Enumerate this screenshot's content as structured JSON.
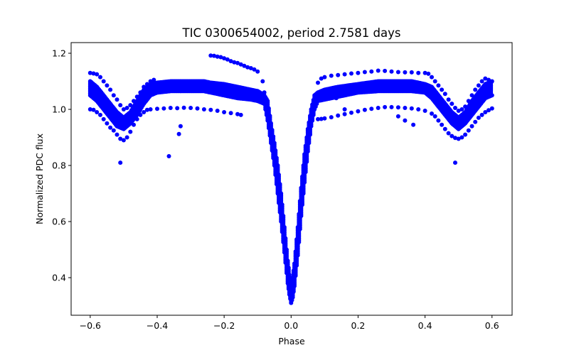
{
  "chart_data": {
    "type": "scatter",
    "title": "TIC 0300654002, period 2.7581 days",
    "xlabel": "Phase",
    "ylabel": "Normalized PDC flux",
    "xlim": [
      -0.657,
      0.66
    ],
    "ylim": [
      0.266,
      1.238
    ],
    "xticks": [
      -0.6,
      -0.4,
      -0.2,
      0.0,
      0.2,
      0.4,
      0.6
    ],
    "xtick_labels": [
      "−0.6",
      "−0.4",
      "−0.2",
      "0.0",
      "0.2",
      "0.4",
      "0.6"
    ],
    "yticks": [
      0.4,
      0.6,
      0.8,
      1.0,
      1.2
    ],
    "ytick_labels": [
      "0.4",
      "0.6",
      "0.8",
      "1.0",
      "1.2"
    ],
    "grid": false,
    "marker_color": "#0000ff",
    "main_band_envelope": [
      [
        -0.6,
        1.05,
        1.1
      ],
      [
        -0.58,
        1.03,
        1.08
      ],
      [
        -0.56,
        1.0,
        1.05
      ],
      [
        -0.54,
        0.97,
        1.02
      ],
      [
        -0.52,
        0.94,
        0.99
      ],
      [
        -0.5,
        0.93,
        0.97
      ],
      [
        -0.48,
        0.95,
        0.99
      ],
      [
        -0.46,
        0.98,
        1.03
      ],
      [
        -0.44,
        1.02,
        1.07
      ],
      [
        -0.42,
        1.05,
        1.09
      ],
      [
        -0.4,
        1.06,
        1.095
      ],
      [
        -0.36,
        1.065,
        1.1
      ],
      [
        -0.3,
        1.065,
        1.1
      ],
      [
        -0.26,
        1.065,
        1.1
      ],
      [
        -0.24,
        1.06,
        1.095
      ],
      [
        -0.2,
        1.05,
        1.09
      ],
      [
        -0.16,
        1.04,
        1.08
      ],
      [
        -0.12,
        1.035,
        1.07
      ],
      [
        -0.1,
        1.03,
        1.065
      ],
      [
        -0.08,
        1.02,
        1.05
      ],
      [
        -0.07,
        0.96,
        1.03
      ],
      [
        -0.06,
        0.88,
        0.95
      ],
      [
        -0.05,
        0.8,
        0.88
      ],
      [
        -0.04,
        0.7,
        0.8
      ],
      [
        -0.03,
        0.6,
        0.7
      ],
      [
        -0.02,
        0.49,
        0.58
      ],
      [
        -0.01,
        0.38,
        0.46
      ],
      [
        -0.005,
        0.34,
        0.41
      ],
      [
        0.0,
        0.31,
        0.37
      ],
      [
        0.005,
        0.33,
        0.4
      ],
      [
        0.01,
        0.37,
        0.45
      ],
      [
        0.02,
        0.48,
        0.58
      ],
      [
        0.03,
        0.62,
        0.72
      ],
      [
        0.04,
        0.74,
        0.84
      ],
      [
        0.05,
        0.85,
        0.93
      ],
      [
        0.06,
        0.94,
        1.0
      ],
      [
        0.07,
        1.0,
        1.05
      ],
      [
        0.08,
        1.03,
        1.06
      ],
      [
        0.1,
        1.035,
        1.07
      ],
      [
        0.14,
        1.045,
        1.08
      ],
      [
        0.2,
        1.06,
        1.09
      ],
      [
        0.26,
        1.065,
        1.1
      ],
      [
        0.36,
        1.065,
        1.1
      ],
      [
        0.4,
        1.06,
        1.09
      ],
      [
        0.42,
        1.04,
        1.08
      ],
      [
        0.44,
        1.01,
        1.05
      ],
      [
        0.46,
        0.98,
        1.02
      ],
      [
        0.48,
        0.95,
        0.99
      ],
      [
        0.5,
        0.93,
        0.97
      ],
      [
        0.52,
        0.95,
        0.99
      ],
      [
        0.54,
        0.98,
        1.03
      ],
      [
        0.56,
        1.01,
        1.06
      ],
      [
        0.58,
        1.04,
        1.09
      ],
      [
        0.6,
        1.05,
        1.1
      ]
    ],
    "upper_track": [
      [
        -0.6,
        1.13
      ],
      [
        -0.59,
        1.128
      ],
      [
        -0.58,
        1.125
      ],
      [
        -0.57,
        1.115
      ],
      [
        -0.56,
        1.1
      ],
      [
        -0.55,
        1.085
      ],
      [
        -0.54,
        1.07
      ],
      [
        -0.53,
        1.05
      ],
      [
        -0.52,
        1.035
      ],
      [
        -0.51,
        1.015
      ],
      [
        -0.5,
        1.0
      ],
      [
        -0.49,
        1.005
      ],
      [
        -0.48,
        1.015
      ],
      [
        -0.47,
        1.03
      ],
      [
        -0.46,
        1.045
      ],
      [
        -0.45,
        1.06
      ],
      [
        -0.44,
        1.08
      ],
      [
        -0.43,
        1.09
      ],
      [
        -0.42,
        1.1
      ],
      [
        -0.41,
        1.105
      ],
      [
        -0.24,
        1.192
      ],
      [
        -0.23,
        1.191
      ],
      [
        -0.22,
        1.188
      ],
      [
        -0.21,
        1.186
      ],
      [
        -0.2,
        1.182
      ],
      [
        -0.19,
        1.178
      ],
      [
        -0.18,
        1.172
      ],
      [
        -0.17,
        1.168
      ],
      [
        -0.16,
        1.165
      ],
      [
        -0.15,
        1.16
      ],
      [
        -0.14,
        1.155
      ],
      [
        -0.13,
        1.15
      ],
      [
        -0.12,
        1.147
      ],
      [
        -0.11,
        1.142
      ],
      [
        -0.1,
        1.135
      ],
      [
        -0.085,
        1.1
      ],
      [
        -0.08,
        1.06
      ],
      [
        0.08,
        1.095
      ],
      [
        0.09,
        1.11
      ],
      [
        0.1,
        1.115
      ],
      [
        0.12,
        1.12
      ],
      [
        0.14,
        1.122
      ],
      [
        0.16,
        1.125
      ],
      [
        0.18,
        1.128
      ],
      [
        0.2,
        1.13
      ],
      [
        0.22,
        1.133
      ],
      [
        0.24,
        1.135
      ],
      [
        0.26,
        1.138
      ],
      [
        0.28,
        1.137
      ],
      [
        0.3,
        1.135
      ],
      [
        0.32,
        1.133
      ],
      [
        0.34,
        1.132
      ],
      [
        0.36,
        1.132
      ],
      [
        0.38,
        1.13
      ],
      [
        0.4,
        1.13
      ],
      [
        0.41,
        1.127
      ],
      [
        0.42,
        1.115
      ],
      [
        0.43,
        1.1
      ],
      [
        0.44,
        1.085
      ],
      [
        0.45,
        1.07
      ],
      [
        0.46,
        1.055
      ],
      [
        0.47,
        1.035
      ],
      [
        0.48,
        1.02
      ],
      [
        0.49,
        1.005
      ],
      [
        0.5,
        0.995
      ],
      [
        0.51,
        1.0
      ],
      [
        0.52,
        1.01
      ],
      [
        0.53,
        1.03
      ],
      [
        0.54,
        1.05
      ],
      [
        0.55,
        1.07
      ],
      [
        0.56,
        1.085
      ],
      [
        0.57,
        1.1
      ],
      [
        0.58,
        1.11
      ],
      [
        0.59,
        1.105
      ]
    ],
    "lower_track": [
      [
        -0.6,
        1.0
      ],
      [
        -0.59,
        0.998
      ],
      [
        -0.58,
        0.99
      ],
      [
        -0.57,
        0.98
      ],
      [
        -0.56,
        0.965
      ],
      [
        -0.55,
        0.95
      ],
      [
        -0.54,
        0.935
      ],
      [
        -0.53,
        0.925
      ],
      [
        -0.52,
        0.91
      ],
      [
        -0.51,
        0.895
      ],
      [
        -0.5,
        0.89
      ],
      [
        -0.49,
        0.9
      ],
      [
        -0.48,
        0.92
      ],
      [
        -0.47,
        0.945
      ],
      [
        -0.46,
        0.965
      ],
      [
        -0.45,
        0.98
      ],
      [
        -0.44,
        0.99
      ],
      [
        -0.43,
        0.998
      ],
      [
        -0.42,
        1.0
      ],
      [
        -0.4,
        1.002
      ],
      [
        -0.38,
        1.003
      ],
      [
        -0.36,
        1.005
      ],
      [
        -0.34,
        1.004
      ],
      [
        -0.32,
        1.006
      ],
      [
        -0.3,
        1.005
      ],
      [
        -0.28,
        1.003
      ],
      [
        -0.26,
        1.0
      ],
      [
        -0.24,
        0.998
      ],
      [
        -0.22,
        0.995
      ],
      [
        -0.2,
        0.99
      ],
      [
        -0.18,
        0.987
      ],
      [
        -0.16,
        0.983
      ],
      [
        -0.15,
        0.98
      ],
      [
        0.08,
        0.965
      ],
      [
        0.09,
        0.966
      ],
      [
        0.1,
        0.968
      ],
      [
        0.12,
        0.972
      ],
      [
        0.14,
        0.978
      ],
      [
        0.16,
        0.983
      ],
      [
        0.18,
        0.988
      ],
      [
        0.2,
        0.993
      ],
      [
        0.22,
        0.998
      ],
      [
        0.24,
        1.002
      ],
      [
        0.26,
        1.005
      ],
      [
        0.28,
        1.008
      ],
      [
        0.3,
        1.008
      ],
      [
        0.32,
        1.007
      ],
      [
        0.34,
        1.005
      ],
      [
        0.36,
        1.003
      ],
      [
        0.38,
        1.0
      ],
      [
        0.4,
        0.995
      ],
      [
        0.42,
        0.985
      ],
      [
        0.43,
        0.975
      ],
      [
        0.44,
        0.96
      ],
      [
        0.45,
        0.945
      ],
      [
        0.46,
        0.93
      ],
      [
        0.47,
        0.915
      ],
      [
        0.48,
        0.905
      ],
      [
        0.49,
        0.898
      ],
      [
        0.5,
        0.895
      ],
      [
        0.51,
        0.9
      ],
      [
        0.52,
        0.91
      ],
      [
        0.53,
        0.925
      ],
      [
        0.54,
        0.94
      ],
      [
        0.55,
        0.955
      ],
      [
        0.56,
        0.97
      ],
      [
        0.57,
        0.98
      ],
      [
        0.58,
        0.99
      ],
      [
        0.59,
        0.997
      ],
      [
        0.6,
        1.003
      ]
    ],
    "outliers": [
      [
        -0.51,
        0.81
      ],
      [
        -0.365,
        0.833
      ],
      [
        -0.335,
        0.912
      ],
      [
        -0.33,
        0.94
      ],
      [
        0.365,
        0.945
      ],
      [
        0.49,
        0.81
      ],
      [
        0.135,
        1.04
      ],
      [
        0.16,
        1.0
      ],
      [
        0.34,
        0.96
      ],
      [
        0.32,
        0.975
      ]
    ]
  }
}
